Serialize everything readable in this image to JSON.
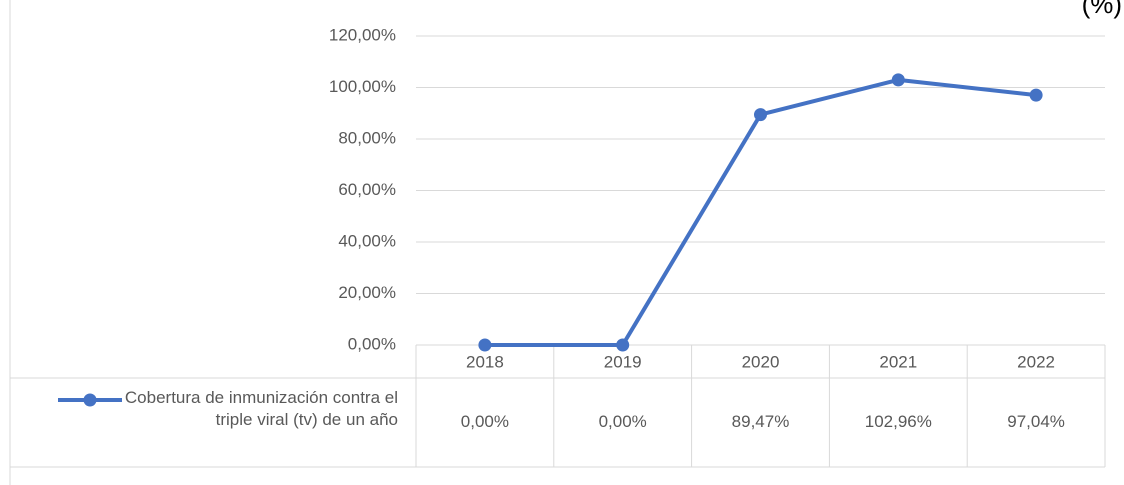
{
  "chart_data": {
    "type": "line",
    "title": "(%)",
    "categories": [
      "2018",
      "2019",
      "2020",
      "2021",
      "2022"
    ],
    "series": [
      {
        "name": "Cobertura de inmunización contra el triple viral (tv) de un año",
        "color": "#4472c4",
        "values": [
          0,
          0,
          89.47,
          102.96,
          97.04
        ],
        "value_labels": [
          "0,00%",
          "0,00%",
          "89,47%",
          "102,96%",
          "97,04%"
        ]
      }
    ],
    "ylim": [
      0,
      120
    ],
    "yticks": [
      {
        "value": 0,
        "label": "0,00%"
      },
      {
        "value": 20,
        "label": "20,00%"
      },
      {
        "value": 40,
        "label": "40,00%"
      },
      {
        "value": 60,
        "label": "60,00%"
      },
      {
        "value": 80,
        "label": "80,00%"
      },
      {
        "value": 100,
        "label": "100,00%"
      },
      {
        "value": 120,
        "label": "120,00%"
      }
    ],
    "grid": true,
    "data_table": true
  }
}
